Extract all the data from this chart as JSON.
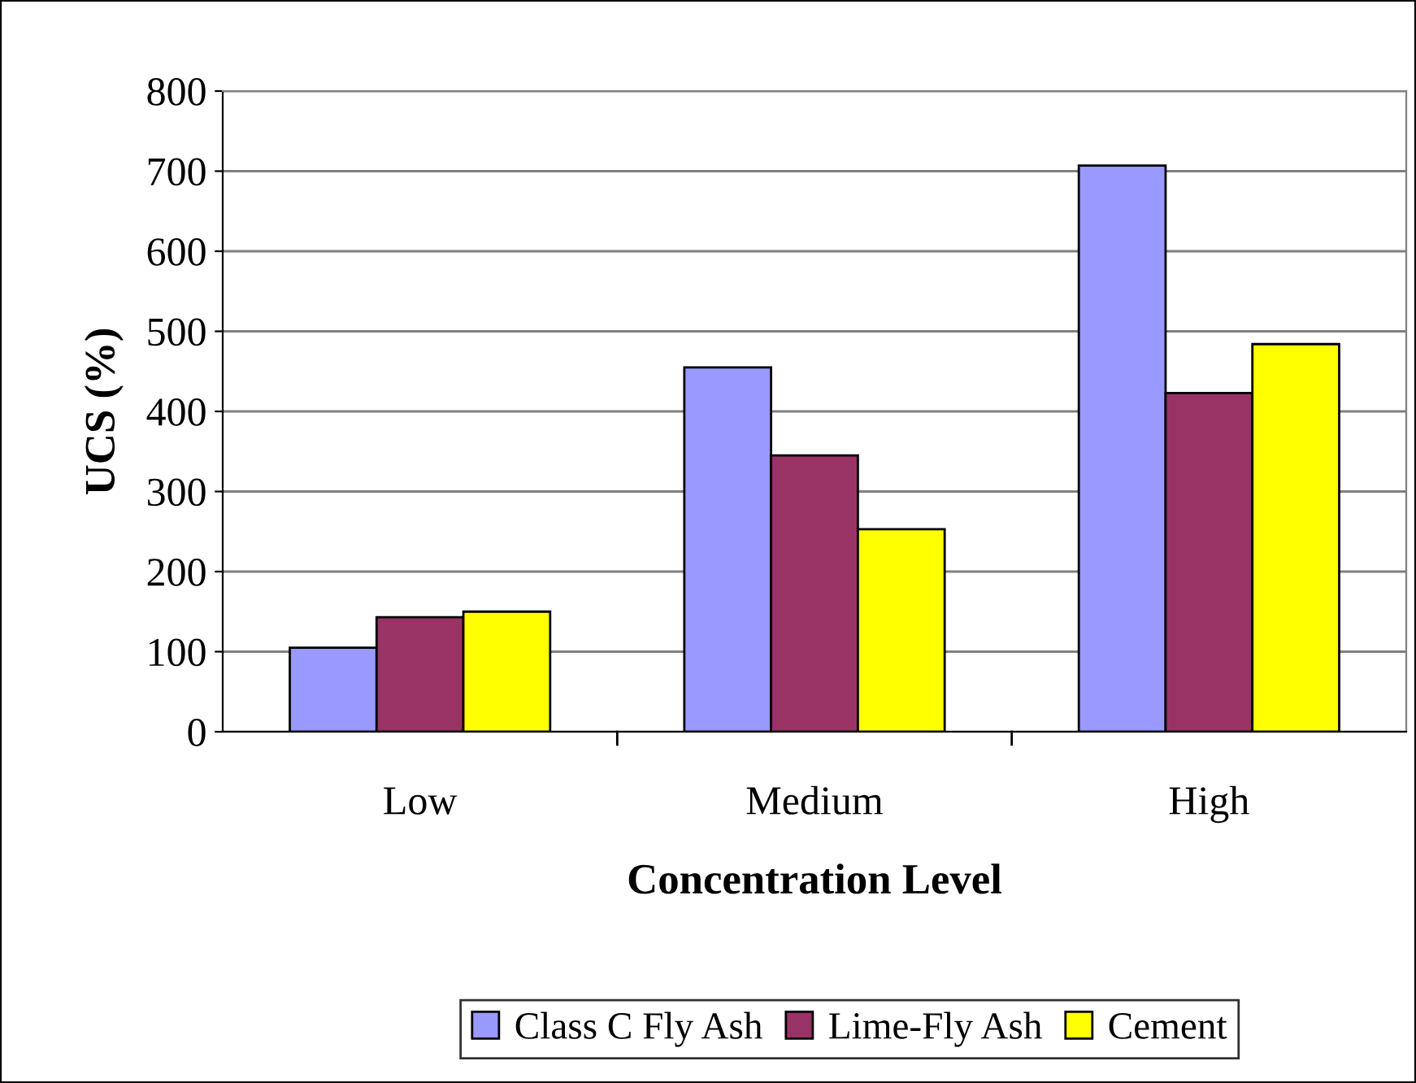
{
  "chart_data": {
    "type": "bar",
    "xlabel": "Concentration Level",
    "ylabel": "UCS (%)",
    "categories": [
      "Low",
      "Medium",
      "High"
    ],
    "series": [
      {
        "name": "Class C Fly Ash",
        "color": "#9999ff",
        "values": [
          105,
          455,
          707
        ]
      },
      {
        "name": "Lime-Fly Ash",
        "color": "#993366",
        "values": [
          143,
          345,
          423
        ]
      },
      {
        "name": "Cement",
        "color": "#ffff00",
        "values": [
          150,
          253,
          484
        ]
      }
    ],
    "ylim": [
      0,
      800
    ],
    "yticks": [
      0,
      100,
      200,
      300,
      400,
      500,
      600,
      700,
      800
    ],
    "grid": "y",
    "legend": "bottom"
  }
}
